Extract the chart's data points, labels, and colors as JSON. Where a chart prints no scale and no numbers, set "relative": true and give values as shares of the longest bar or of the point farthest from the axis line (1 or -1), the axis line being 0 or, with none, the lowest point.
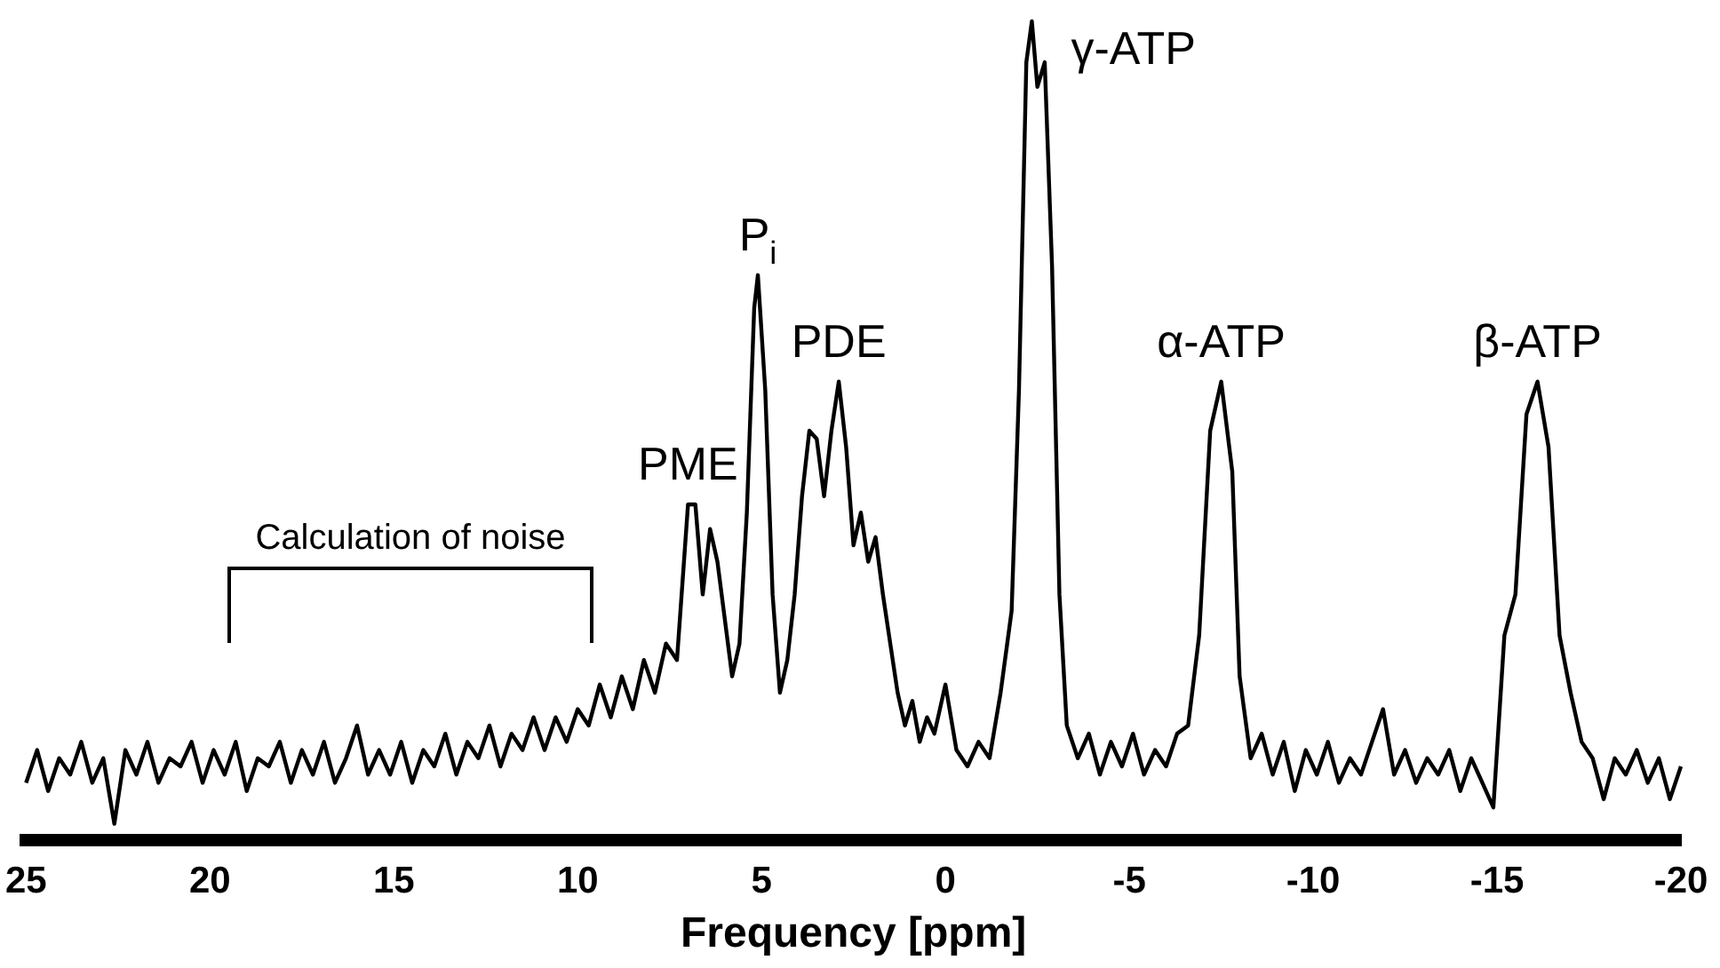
{
  "chart_data": {
    "type": "line",
    "xlabel": "Frequency [ppm]",
    "relative": true,
    "xlim": [
      25,
      -20
    ],
    "xticks": [
      25,
      20,
      15,
      10,
      5,
      0,
      -5,
      -10,
      -15,
      -20
    ],
    "grid": false,
    "legend": false,
    "marker": "none",
    "line_style": "solid",
    "series": [
      {
        "color": "#000000",
        "x": [
          25,
          24.7,
          24.4,
          24.1,
          23.8,
          23.5,
          23.2,
          22.9,
          22.6,
          22.3,
          22.0,
          21.7,
          21.4,
          21.1,
          20.8,
          20.5,
          20.2,
          19.9,
          19.6,
          19.3,
          19.0,
          18.7,
          18.4,
          18.1,
          17.8,
          17.5,
          17.2,
          16.9,
          16.6,
          16.3,
          16.0,
          15.7,
          15.4,
          15.1,
          14.8,
          14.5,
          14.2,
          13.9,
          13.6,
          13.3,
          13.0,
          12.7,
          12.4,
          12.1,
          11.8,
          11.5,
          11.2,
          10.9,
          10.6,
          10.3,
          10.0,
          9.7,
          9.4,
          9.1,
          8.8,
          8.5,
          8.2,
          7.9,
          7.6,
          7.3,
          7.0,
          6.8,
          6.6,
          6.4,
          6.2,
          6.0,
          5.8,
          5.6,
          5.4,
          5.2,
          5.1,
          4.9,
          4.7,
          4.5,
          4.3,
          4.1,
          3.9,
          3.7,
          3.5,
          3.3,
          3.1,
          2.9,
          2.7,
          2.5,
          2.3,
          2.1,
          1.9,
          1.7,
          1.5,
          1.3,
          1.1,
          0.9,
          0.7,
          0.5,
          0.3,
          0.0,
          -0.3,
          -0.6,
          -0.9,
          -1.2,
          -1.5,
          -1.8,
          -2.0,
          -2.2,
          -2.35,
          -2.5,
          -2.7,
          -2.9,
          -3.1,
          -3.3,
          -3.6,
          -3.9,
          -4.2,
          -4.5,
          -4.8,
          -5.1,
          -5.4,
          -5.7,
          -6.0,
          -6.3,
          -6.6,
          -6.9,
          -7.2,
          -7.5,
          -7.8,
          -8.0,
          -8.3,
          -8.6,
          -8.9,
          -9.2,
          -9.5,
          -9.8,
          -10.1,
          -10.4,
          -10.7,
          -11.0,
          -11.3,
          -11.6,
          -11.9,
          -12.2,
          -12.5,
          -12.8,
          -13.1,
          -13.4,
          -13.7,
          -14.0,
          -14.3,
          -14.6,
          -14.9,
          -15.2,
          -15.5,
          -15.8,
          -16.1,
          -16.4,
          -16.7,
          -17.0,
          -17.3,
          -17.6,
          -17.9,
          -18.2,
          -18.5,
          -18.8,
          -19.1,
          -19.4,
          -19.7,
          -20
        ],
        "values": [
          0.07,
          0.11,
          0.06,
          0.1,
          0.08,
          0.12,
          0.07,
          0.1,
          0.02,
          0.11,
          0.08,
          0.12,
          0.07,
          0.1,
          0.09,
          0.12,
          0.07,
          0.11,
          0.08,
          0.12,
          0.06,
          0.1,
          0.09,
          0.12,
          0.07,
          0.11,
          0.08,
          0.12,
          0.07,
          0.1,
          0.14,
          0.08,
          0.11,
          0.08,
          0.12,
          0.07,
          0.11,
          0.09,
          0.13,
          0.08,
          0.12,
          0.1,
          0.14,
          0.09,
          0.13,
          0.11,
          0.15,
          0.11,
          0.15,
          0.12,
          0.16,
          0.14,
          0.19,
          0.15,
          0.2,
          0.16,
          0.22,
          0.18,
          0.24,
          0.22,
          0.41,
          0.41,
          0.3,
          0.38,
          0.34,
          0.27,
          0.2,
          0.24,
          0.4,
          0.65,
          0.69,
          0.55,
          0.3,
          0.18,
          0.22,
          0.3,
          0.42,
          0.5,
          0.49,
          0.42,
          0.5,
          0.56,
          0.48,
          0.36,
          0.4,
          0.34,
          0.37,
          0.3,
          0.24,
          0.18,
          0.14,
          0.17,
          0.12,
          0.15,
          0.13,
          0.19,
          0.11,
          0.09,
          0.12,
          0.1,
          0.18,
          0.28,
          0.55,
          0.95,
          1.0,
          0.92,
          0.95,
          0.7,
          0.3,
          0.14,
          0.1,
          0.13,
          0.08,
          0.12,
          0.09,
          0.13,
          0.08,
          0.11,
          0.09,
          0.13,
          0.14,
          0.25,
          0.5,
          0.56,
          0.45,
          0.2,
          0.1,
          0.13,
          0.08,
          0.12,
          0.06,
          0.11,
          0.08,
          0.12,
          0.07,
          0.1,
          0.08,
          0.12,
          0.16,
          0.08,
          0.11,
          0.07,
          0.1,
          0.08,
          0.11,
          0.06,
          0.1,
          0.07,
          0.04,
          0.25,
          0.3,
          0.52,
          0.56,
          0.48,
          0.25,
          0.18,
          0.12,
          0.1,
          0.05,
          0.1,
          0.08,
          0.11,
          0.07,
          0.1,
          0.05,
          0.09
        ]
      }
    ],
    "annotations": [
      "Calculation of noise",
      {
        "text": "PME",
        "x": 7.0,
        "y": 0.41
      },
      {
        "text": "P$_{i}$",
        "x": 5.1,
        "y": 0.69
      },
      {
        "text": "PDE",
        "x": 2.9,
        "y": 0.56
      },
      {
        "text": "γ-ATP",
        "x": -2.35,
        "y": 1.0
      },
      {
        "text": "α-ATP",
        "x": -7.5,
        "y": 0.56
      },
      {
        "text": "β-ATP",
        "x": -16.1,
        "y": 0.56
      }
    ]
  }
}
